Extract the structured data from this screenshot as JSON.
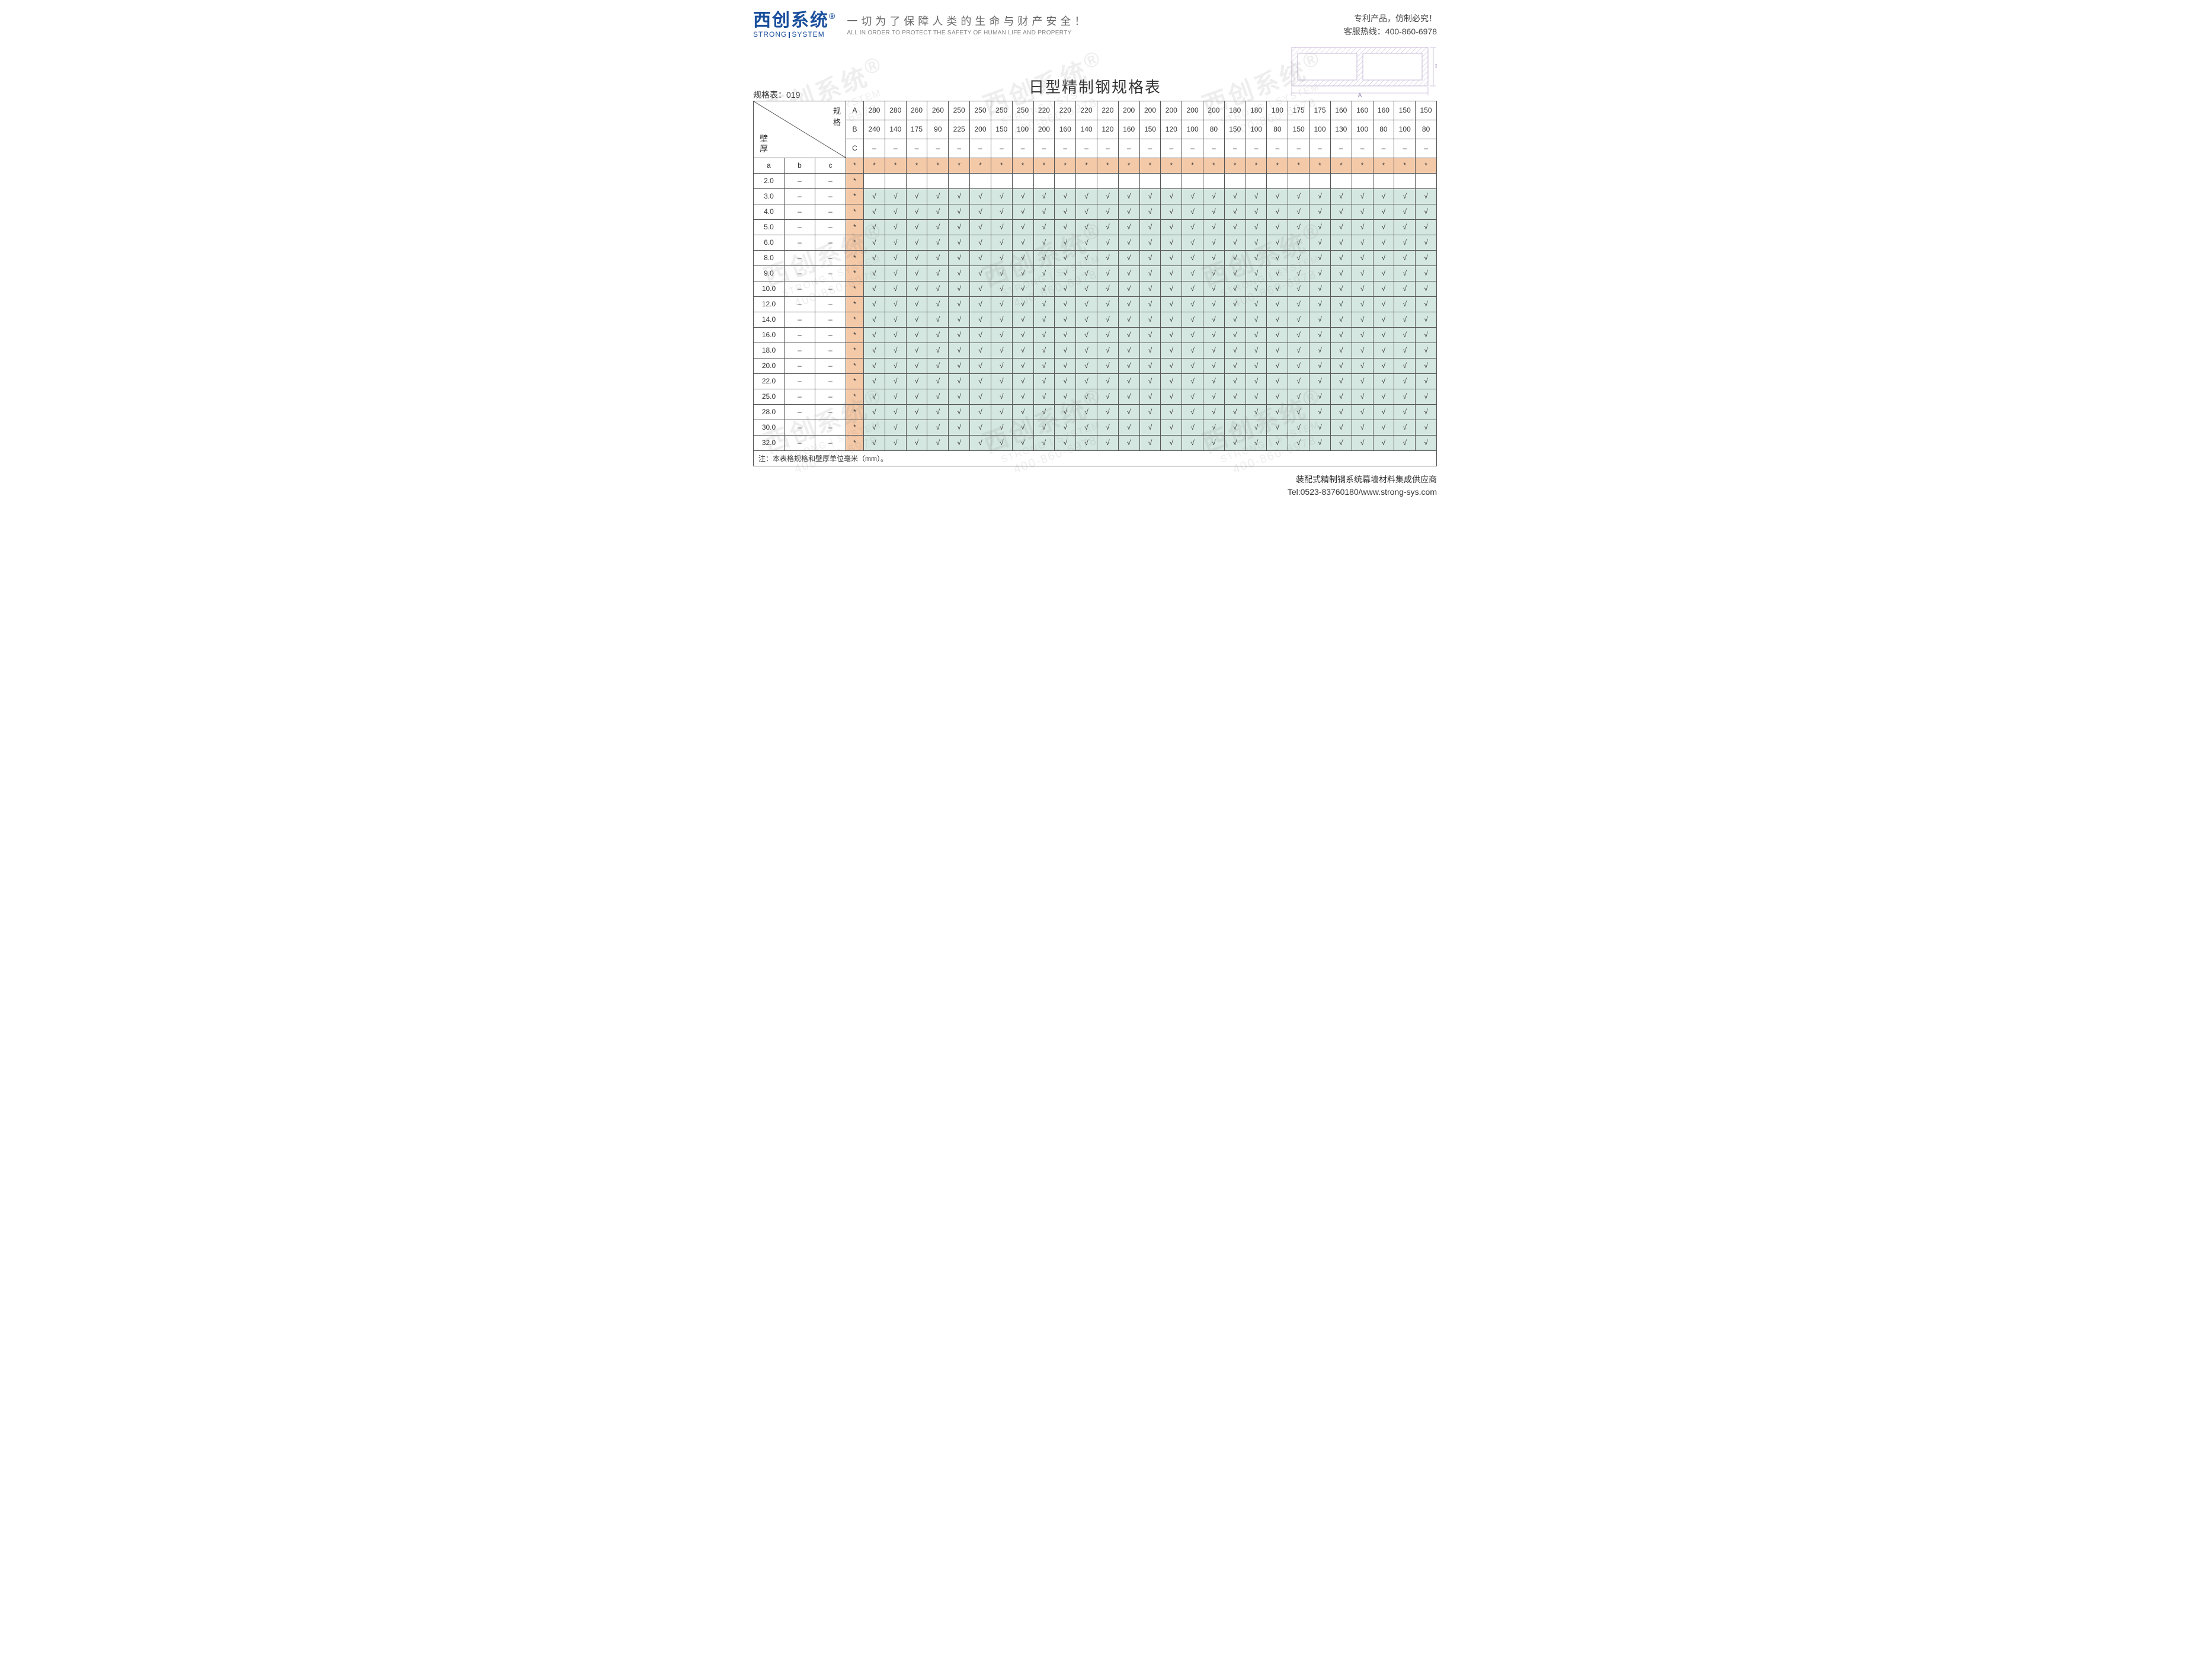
{
  "brand": {
    "cn": "西创系统",
    "reg": "®",
    "en_left": "STRONG",
    "en_right": "SYSTEM"
  },
  "slogan": {
    "cn": "一切为了保障人类的生命与财产安全！",
    "en": "ALL IN ORDER TO PROTECT THE SAFETY OF HUMAN LIFE AND PROPERTY"
  },
  "header_right": {
    "line1": "专利产品，仿制必究！",
    "line2": "客服热线：400-860-6978"
  },
  "title": "日型精制钢规格表",
  "spec_code_label": "规格表：019",
  "diagram": {
    "label_A": "A",
    "label_B": "B",
    "stroke": "#c7b8d6",
    "hatch": "#c7b8d6"
  },
  "corner": {
    "spec_label": "规格",
    "wall_label_1": "壁",
    "wall_label_2": "厚"
  },
  "dim_letters": [
    "A",
    "B",
    "C"
  ],
  "abc_headers": [
    "a",
    "b",
    "c"
  ],
  "columns_A": [
    "280",
    "280",
    "260",
    "260",
    "250",
    "250",
    "250",
    "250",
    "220",
    "220",
    "220",
    "220",
    "200",
    "200",
    "200",
    "200",
    "200",
    "180",
    "180",
    "180",
    "175",
    "175",
    "160",
    "160",
    "160",
    "150",
    "150"
  ],
  "columns_B": [
    "240",
    "140",
    "175",
    "90",
    "225",
    "200",
    "150",
    "100",
    "200",
    "160",
    "140",
    "120",
    "160",
    "150",
    "120",
    "100",
    "80",
    "150",
    "100",
    "80",
    "150",
    "100",
    "130",
    "100",
    "80",
    "100",
    "80"
  ],
  "columns_C_dash": "–",
  "asterisk": "*",
  "check": "√",
  "dash": "–",
  "wall_rows": [
    {
      "a": "2.0",
      "cells_all_blank": true
    },
    {
      "a": "3.0"
    },
    {
      "a": "4.0"
    },
    {
      "a": "5.0"
    },
    {
      "a": "6.0"
    },
    {
      "a": "8.0"
    },
    {
      "a": "9.0"
    },
    {
      "a": "10.0"
    },
    {
      "a": "12.0"
    },
    {
      "a": "14.0"
    },
    {
      "a": "16.0"
    },
    {
      "a": "18.0"
    },
    {
      "a": "20.0"
    },
    {
      "a": "22.0"
    },
    {
      "a": "25.0"
    },
    {
      "a": "28.0"
    },
    {
      "a": "30.0"
    },
    {
      "a": "32.0"
    }
  ],
  "footnote": "注：本表格规格和壁厚单位毫米（mm）。",
  "footer": {
    "line1": "装配式精制钢系统幕墙材料集成供应商",
    "line2": "Tel:0523-83760180/www.strong-sys.com"
  },
  "colors": {
    "border": "#555555",
    "asterisk_bg": "#f4c9a8",
    "check_bg": "#d5e7e1",
    "brand_blue": "#1a4f9c"
  },
  "watermark": {
    "cn": "西创系统",
    "en": "STRONG | SYSTEM",
    "phone": "400-860-6978",
    "reg": "®"
  }
}
